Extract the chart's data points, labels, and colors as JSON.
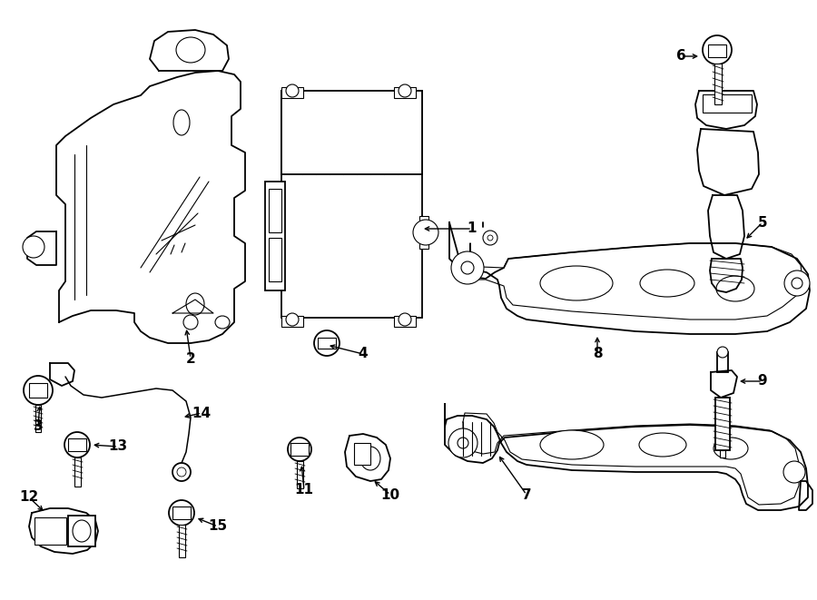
{
  "bg_color": "#ffffff",
  "line_color": "#000000",
  "lw_main": 1.3,
  "lw_inner": 0.8,
  "lw_thin": 0.6,
  "fig_w": 9.0,
  "fig_h": 6.61,
  "dpi": 100
}
